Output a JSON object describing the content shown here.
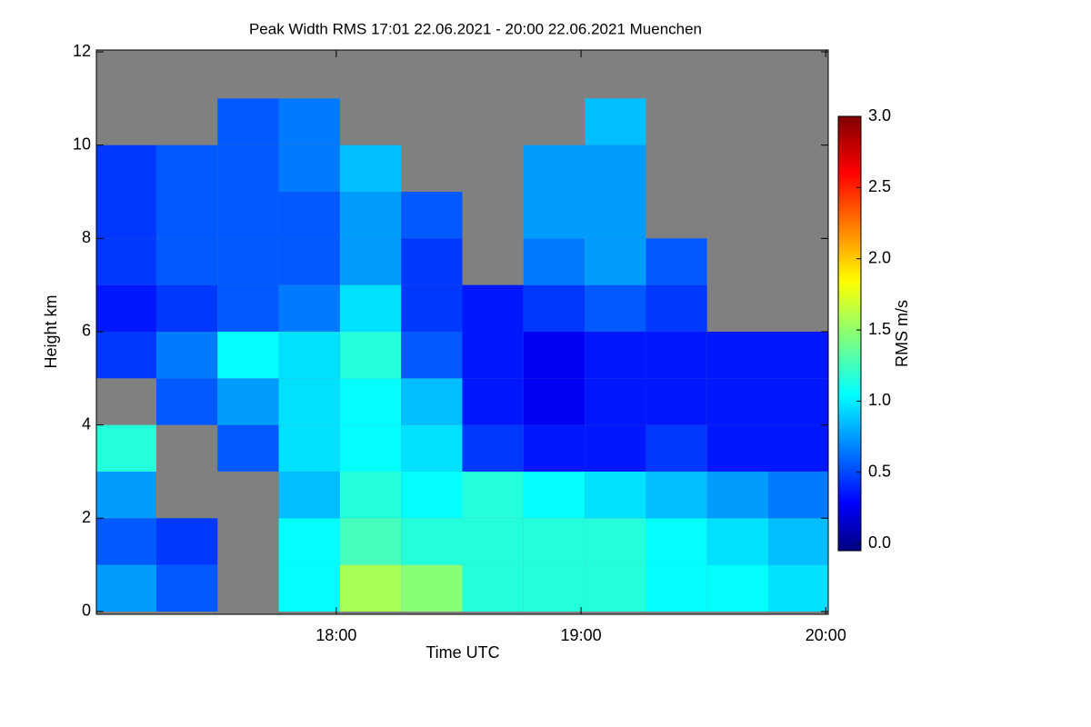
{
  "chart_data": {
    "type": "heatmap",
    "title": "Peak Width RMS   17:01 22.06.2021 - 20:00 22.06.2021 Muenchen",
    "x_label": "Time UTC",
    "y_label": "Height km",
    "colorbar_label": "RMS m/s",
    "colormap": "jet",
    "missing_color": "#808080",
    "x": [
      17.14,
      17.39,
      17.64,
      17.89,
      18.14,
      18.39,
      18.64,
      18.89,
      19.14,
      19.39,
      19.64,
      19.89
    ],
    "y": [
      0.5,
      1.5,
      2.5,
      3.5,
      4.5,
      5.5,
      6.5,
      7.5,
      8.5,
      9.5,
      10.5,
      11.5
    ],
    "values": [
      [
        0.8,
        0.6,
        null,
        1.1,
        1.6,
        1.5,
        1.2,
        1.2,
        1.2,
        1.1,
        1.1,
        1.0
      ],
      [
        0.6,
        0.5,
        null,
        1.1,
        1.3,
        1.2,
        1.2,
        1.2,
        1.2,
        1.1,
        1.0,
        0.9
      ],
      [
        0.8,
        null,
        null,
        0.9,
        1.2,
        1.1,
        1.2,
        1.1,
        1.0,
        0.9,
        0.8,
        0.7
      ],
      [
        1.2,
        null,
        0.6,
        1.0,
        1.1,
        1.0,
        0.5,
        0.4,
        0.4,
        0.5,
        0.4,
        0.4
      ],
      [
        null,
        0.6,
        0.8,
        1.0,
        1.1,
        0.9,
        0.4,
        0.3,
        0.4,
        0.4,
        0.4,
        0.4
      ],
      [
        0.5,
        0.7,
        1.1,
        1.0,
        1.2,
        0.6,
        0.4,
        0.3,
        0.4,
        0.4,
        0.4,
        0.4
      ],
      [
        0.4,
        0.5,
        0.6,
        0.7,
        1.0,
        0.5,
        0.4,
        0.5,
        0.6,
        0.5,
        null,
        null
      ],
      [
        0.5,
        0.6,
        0.6,
        0.6,
        0.8,
        0.5,
        null,
        0.7,
        0.8,
        0.6,
        null,
        null
      ],
      [
        0.5,
        0.6,
        0.6,
        0.6,
        0.8,
        0.6,
        null,
        0.8,
        0.8,
        null,
        null,
        null
      ],
      [
        0.5,
        0.6,
        0.6,
        0.7,
        0.9,
        null,
        null,
        0.8,
        0.8,
        null,
        null,
        null
      ],
      [
        null,
        null,
        0.6,
        0.7,
        null,
        null,
        null,
        null,
        0.9,
        null,
        null,
        null
      ],
      [
        null,
        null,
        null,
        null,
        null,
        null,
        null,
        null,
        null,
        null,
        null,
        null
      ]
    ],
    "xlim": [
      17.02,
      20.01
    ],
    "xticks": [
      {
        "value": 18,
        "label": "18:00"
      },
      {
        "value": 19,
        "label": "19:00"
      },
      {
        "value": 20,
        "label": "20:00"
      }
    ],
    "ylim": [
      -0.06,
      12.04
    ],
    "yticks": [
      0,
      2,
      4,
      6,
      8,
      10,
      12
    ],
    "clim": [
      -0.05,
      3.0
    ],
    "cticks": [
      {
        "value": 0,
        "label": "0.0"
      },
      {
        "value": 0.5,
        "label": "0.5"
      },
      {
        "value": 1,
        "label": "1.0"
      },
      {
        "value": 1.5,
        "label": "1.5"
      },
      {
        "value": 2,
        "label": "2.0"
      },
      {
        "value": 2.5,
        "label": "2.5"
      },
      {
        "value": 3,
        "label": "3.0"
      }
    ]
  }
}
